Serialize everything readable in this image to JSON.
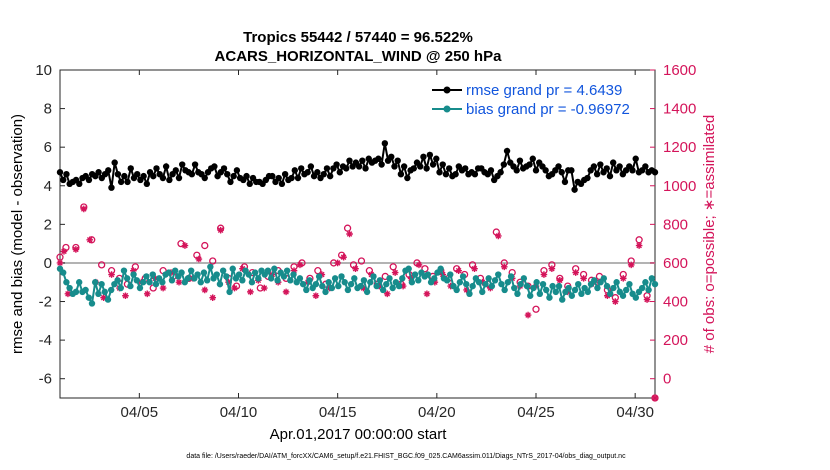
{
  "chart_data": {
    "type": "line",
    "title_line1": "Tropics 55442 / 57440 = 96.522%",
    "title_line2": "ACARS_HORIZONTAL_WIND @ 250 hPa",
    "xlabel": "Apr.01,2017 00:00:00 start",
    "ylabel_left": "rmse and bias (model - observation)",
    "ylabel_right": "# of obs: o=possible; ∗=assimilated",
    "footnote": "data file: /Users/raeder/DAI/ATM_forcXX/CAM6_setup/f.e21.FHIST_BGC.f09_025.CAM6assim.011/Diags_NTrS_2017-04/obs_diag_output.nc",
    "x_ticks": [
      {
        "value": 5,
        "label": "04/05"
      },
      {
        "value": 10,
        "label": "04/10"
      },
      {
        "value": 15,
        "label": "04/15"
      },
      {
        "value": 20,
        "label": "04/20"
      },
      {
        "value": 25,
        "label": "04/25"
      },
      {
        "value": 30,
        "label": "04/30"
      }
    ],
    "xlim": [
      1,
      31
    ],
    "ylim_left": [
      -7,
      10
    ],
    "yticks_left": [
      "-6",
      "-4",
      "-2",
      "0",
      "2",
      "4",
      "6",
      "8",
      "10"
    ],
    "ylim_right": [
      -100,
      1600
    ],
    "yticks_right": [
      "0",
      "200",
      "400",
      "600",
      "800",
      "1000",
      "1200",
      "1400",
      "1600"
    ],
    "zero_line": 0,
    "colors": {
      "rmse": "#000000",
      "bias": "#178c8c",
      "obs": "#d4145a",
      "legend_text": "#1155dd",
      "zero_line": "#b3b3b3"
    },
    "series": [
      {
        "name": "rmse grand pr = 4.6439",
        "color": "#000000",
        "values": [
          4.7,
          4.3,
          4.6,
          4.1,
          4.2,
          4.3,
          4.1,
          4.4,
          4.5,
          4.3,
          4.6,
          4.5,
          4.7,
          4.4,
          4.6,
          4.8,
          3.9,
          5.2,
          4.6,
          4.2,
          4.5,
          4.2,
          4.9,
          4.4,
          4.6,
          4.3,
          4.5,
          4.1,
          4.7,
          4.5,
          4.9,
          4.6,
          4.4,
          5.0,
          4.3,
          4.6,
          4.8,
          4.4,
          5.1,
          4.8,
          4.7,
          4.6,
          5.1,
          4.7,
          4.6,
          4.4,
          4.7,
          4.9,
          5.0,
          4.5,
          4.7,
          4.9,
          4.6,
          4.2,
          4.5,
          4.8,
          4.4,
          4.3,
          4.5,
          4.1,
          4.4,
          4.2,
          4.2,
          4.1,
          4.3,
          4.5,
          4.5,
          4.2,
          4.4,
          4.1,
          4.6,
          4.3,
          4.4,
          4.8,
          4.4,
          4.9,
          4.6,
          4.7,
          5.0,
          4.5,
          4.7,
          4.4,
          4.6,
          4.9,
          4.5,
          4.9,
          5.1,
          4.7,
          5.0,
          4.9,
          5.3,
          5.0,
          5.2,
          5.0,
          5.3,
          4.9,
          5.4,
          5.2,
          5.3,
          5.4,
          5.1,
          6.2,
          5.3,
          5.5,
          5.0,
          5.3,
          4.6,
          5.0,
          4.4,
          4.8,
          4.9,
          5.2,
          5.0,
          5.5,
          4.9,
          5.6,
          5.1,
          5.4,
          4.7,
          5.1,
          4.6,
          4.9,
          4.5,
          4.6,
          5.0,
          4.8,
          4.9,
          4.6,
          4.7,
          4.6,
          4.9,
          4.9,
          4.7,
          4.6,
          4.8,
          4.3,
          4.5,
          4.7,
          5.1,
          5.8,
          5.2,
          5.0,
          4.8,
          5.3,
          4.9,
          5.0,
          5.1,
          5.4,
          4.8,
          5.2,
          5.0,
          4.8,
          4.5,
          4.6,
          4.8,
          5.0,
          4.7,
          4.2,
          4.8,
          4.8,
          3.8,
          4.2,
          4.1,
          4.3,
          4.4,
          4.8,
          5.0,
          4.6,
          5.1,
          4.7,
          4.9,
          4.5,
          5.2,
          4.8,
          5.0,
          4.6,
          4.8,
          5.0,
          4.8,
          5.4,
          4.7,
          4.8,
          5.0,
          4.7,
          4.8,
          4.7
        ]
      },
      {
        "name": "bias grand pr = -0.96972",
        "color": "#178c8c",
        "values": [
          -0.3,
          -0.5,
          -1.0,
          -1.3,
          -1.6,
          -1.5,
          -1.0,
          -1.5,
          -1.4,
          -1.8,
          -2.1,
          -1.0,
          -1.6,
          -1.1,
          -1.5,
          -1.9,
          -1.4,
          -1.1,
          -0.9,
          -1.3,
          -0.4,
          -0.8,
          -1.2,
          -0.6,
          -0.9,
          -1.3,
          -1.0,
          -0.7,
          -1.0,
          -0.6,
          -1.1,
          -0.8,
          -1.0,
          -0.6,
          -0.5,
          -0.9,
          -0.4,
          -0.7,
          -0.5,
          -1.0,
          -0.8,
          -0.4,
          -0.8,
          -0.6,
          -1.0,
          -0.5,
          -0.9,
          -0.2,
          -0.8,
          -0.6,
          -1.1,
          -0.4,
          -0.7,
          -1.5,
          -0.3,
          -0.8,
          -0.6,
          -0.9,
          -0.4,
          -0.6,
          -1.0,
          -0.5,
          -0.8,
          -0.4,
          -0.6,
          -0.4,
          -0.8,
          -0.3,
          -0.9,
          -0.5,
          -0.7,
          -0.4,
          -0.9,
          -0.6,
          -1.0,
          -0.8,
          -1.1,
          -1.4,
          -0.9,
          -1.3,
          -1.1,
          -0.7,
          -1.2,
          -1.5,
          -1.0,
          -1.3,
          -0.8,
          -1.2,
          -0.7,
          -1.0,
          -1.4,
          -1.1,
          -0.8,
          -1.3,
          -1.2,
          -0.9,
          -1.5,
          -1.0,
          -0.7,
          -1.2,
          -0.9,
          -1.4,
          -1.1,
          -0.8,
          -1.3,
          -1.0,
          -1.2,
          -0.8,
          -0.4,
          -0.3,
          -1.0,
          -0.6,
          -0.9,
          -0.5,
          -0.7,
          -0.6,
          -1.0,
          -0.8,
          -0.5,
          -0.3,
          -0.8,
          -0.9,
          -0.6,
          -1.2,
          -1.4,
          -1.0,
          -0.7,
          -1.1,
          -1.6,
          -1.2,
          -0.8,
          -1.0,
          -1.5,
          -1.1,
          -0.8,
          -1.2,
          -0.9,
          -0.6,
          -1.1,
          -1.4,
          -1.0,
          -0.7,
          -1.3,
          -1.6,
          -1.1,
          -0.8,
          -1.2,
          -1.7,
          -1.3,
          -1.0,
          -1.6,
          -1.1,
          -1.4,
          -1.8,
          -1.2,
          -1.5,
          -1.2,
          -1.9,
          -1.5,
          -1.3,
          -1.7,
          -1.4,
          -1.1,
          -1.6,
          -1.3,
          -1.5,
          -1.1,
          -0.9,
          -1.3,
          -1.0,
          -0.8,
          -1.2,
          -1.6,
          -1.3,
          -1.0,
          -1.5,
          -1.7,
          -1.4,
          -1.1,
          -1.6,
          -1.8,
          -1.5,
          -1.3,
          -1.0,
          -1.4,
          -0.8,
          -1.1
        ]
      }
    ],
    "obs_possible": [
      [
        1.0,
        630
      ],
      [
        1.3,
        680
      ],
      [
        1.8,
        680
      ],
      [
        2.2,
        890
      ],
      [
        2.6,
        720
      ],
      [
        3.1,
        590
      ],
      [
        3.6,
        560
      ],
      [
        4.0,
        520
      ],
      [
        4.4,
        490
      ],
      [
        4.8,
        580
      ],
      [
        5.3,
        520
      ],
      [
        5.7,
        470
      ],
      [
        6.2,
        560
      ],
      [
        6.7,
        530
      ],
      [
        7.1,
        700
      ],
      [
        7.5,
        520
      ],
      [
        7.9,
        640
      ],
      [
        8.3,
        690
      ],
      [
        8.7,
        610
      ],
      [
        9.1,
        780
      ],
      [
        9.5,
        520
      ],
      [
        9.9,
        480
      ],
      [
        10.3,
        580
      ],
      [
        10.7,
        550
      ],
      [
        11.1,
        470
      ],
      [
        11.5,
        530
      ],
      [
        12.0,
        560
      ],
      [
        12.4,
        520
      ],
      [
        12.8,
        580
      ],
      [
        13.2,
        600
      ],
      [
        13.6,
        520
      ],
      [
        14.0,
        560
      ],
      [
        14.4,
        490
      ],
      [
        14.8,
        600
      ],
      [
        15.2,
        640
      ],
      [
        15.5,
        780
      ],
      [
        15.8,
        590
      ],
      [
        16.2,
        610
      ],
      [
        16.6,
        560
      ],
      [
        17.0,
        490
      ],
      [
        17.4,
        530
      ],
      [
        17.8,
        580
      ],
      [
        18.2,
        490
      ],
      [
        18.6,
        540
      ],
      [
        19.0,
        600
      ],
      [
        19.4,
        570
      ],
      [
        19.8,
        530
      ],
      [
        20.2,
        560
      ],
      [
        20.6,
        520
      ],
      [
        21.0,
        570
      ],
      [
        21.4,
        540
      ],
      [
        21.8,
        590
      ],
      [
        22.2,
        520
      ],
      [
        22.6,
        490
      ],
      [
        23.0,
        760
      ],
      [
        23.4,
        600
      ],
      [
        23.8,
        550
      ],
      [
        24.2,
        500
      ],
      [
        24.6,
        480
      ],
      [
        25.0,
        360
      ],
      [
        25.4,
        560
      ],
      [
        25.8,
        590
      ],
      [
        26.2,
        520
      ],
      [
        26.6,
        480
      ],
      [
        27.0,
        570
      ],
      [
        27.4,
        540
      ],
      [
        27.8,
        510
      ],
      [
        28.2,
        530
      ],
      [
        28.6,
        460
      ],
      [
        29.0,
        420
      ],
      [
        29.4,
        540
      ],
      [
        29.8,
        610
      ],
      [
        30.2,
        720
      ],
      [
        30.6,
        430
      ],
      [
        31.0,
        -100
      ]
    ],
    "obs_assimilated": [
      [
        1.0,
        600
      ],
      [
        1.2,
        660
      ],
      [
        1.4,
        440
      ],
      [
        1.8,
        670
      ],
      [
        2.2,
        880
      ],
      [
        2.5,
        720
      ],
      [
        2.8,
        500
      ],
      [
        3.2,
        420
      ],
      [
        3.6,
        540
      ],
      [
        4.0,
        470
      ],
      [
        4.3,
        430
      ],
      [
        4.7,
        560
      ],
      [
        5.1,
        500
      ],
      [
        5.4,
        440
      ],
      [
        5.8,
        520
      ],
      [
        6.2,
        470
      ],
      [
        6.6,
        550
      ],
      [
        7.0,
        500
      ],
      [
        7.3,
        690
      ],
      [
        7.7,
        520
      ],
      [
        8.0,
        620
      ],
      [
        8.3,
        460
      ],
      [
        8.7,
        420
      ],
      [
        9.1,
        770
      ],
      [
        9.5,
        500
      ],
      [
        9.8,
        470
      ],
      [
        10.2,
        570
      ],
      [
        10.6,
        450
      ],
      [
        11.0,
        510
      ],
      [
        11.3,
        470
      ],
      [
        11.7,
        540
      ],
      [
        12.0,
        500
      ],
      [
        12.4,
        450
      ],
      [
        12.8,
        560
      ],
      [
        13.1,
        590
      ],
      [
        13.5,
        500
      ],
      [
        13.9,
        430
      ],
      [
        14.2,
        540
      ],
      [
        14.6,
        470
      ],
      [
        15.0,
        600
      ],
      [
        15.3,
        630
      ],
      [
        15.6,
        750
      ],
      [
        15.9,
        570
      ],
      [
        16.3,
        470
      ],
      [
        16.7,
        540
      ],
      [
        17.1,
        480
      ],
      [
        17.5,
        440
      ],
      [
        17.9,
        550
      ],
      [
        18.3,
        480
      ],
      [
        18.7,
        520
      ],
      [
        19.1,
        590
      ],
      [
        19.5,
        440
      ],
      [
        19.9,
        500
      ],
      [
        20.3,
        540
      ],
      [
        20.7,
        480
      ],
      [
        21.1,
        560
      ],
      [
        21.5,
        460
      ],
      [
        21.9,
        570
      ],
      [
        22.3,
        500
      ],
      [
        22.7,
        470
      ],
      [
        23.1,
        740
      ],
      [
        23.4,
        580
      ],
      [
        23.8,
        520
      ],
      [
        24.2,
        480
      ],
      [
        24.6,
        330
      ],
      [
        25.0,
        480
      ],
      [
        25.4,
        540
      ],
      [
        25.8,
        570
      ],
      [
        26.2,
        510
      ],
      [
        26.6,
        450
      ],
      [
        27.0,
        550
      ],
      [
        27.4,
        520
      ],
      [
        27.8,
        490
      ],
      [
        28.2,
        500
      ],
      [
        28.6,
        430
      ],
      [
        29.0,
        400
      ],
      [
        29.4,
        520
      ],
      [
        29.8,
        590
      ],
      [
        30.2,
        690
      ],
      [
        30.6,
        410
      ],
      [
        31.0,
        -100
      ]
    ],
    "legend_placement": "top-right"
  }
}
